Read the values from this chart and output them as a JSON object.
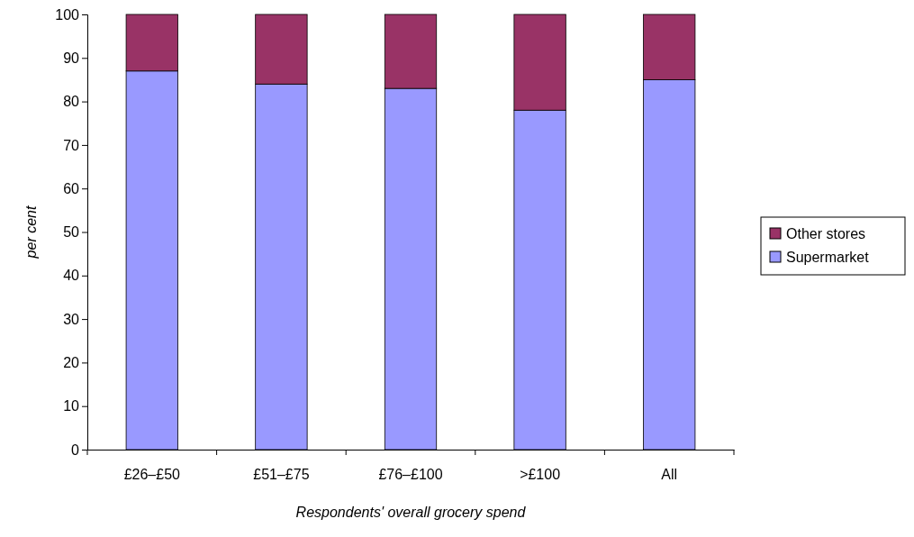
{
  "chart_data": {
    "type": "bar",
    "stacked": true,
    "xlabel": "Respondents' overall grocery spend",
    "ylabel": "per cent",
    "categories": [
      "£26–£50",
      "£51–£75",
      "£76–£100",
      ">£100",
      "All"
    ],
    "series": [
      {
        "name": "Supermarket",
        "color": "#9999ff",
        "values": [
          87,
          84,
          83,
          78,
          85
        ]
      },
      {
        "name": "Other stores",
        "color": "#993366",
        "values": [
          13,
          16,
          17,
          22,
          15
        ]
      }
    ],
    "ylim": [
      0,
      100
    ],
    "yticks": [
      0,
      10,
      20,
      30,
      40,
      50,
      60,
      70,
      80,
      90,
      100
    ],
    "grid": false,
    "legend": "right"
  }
}
